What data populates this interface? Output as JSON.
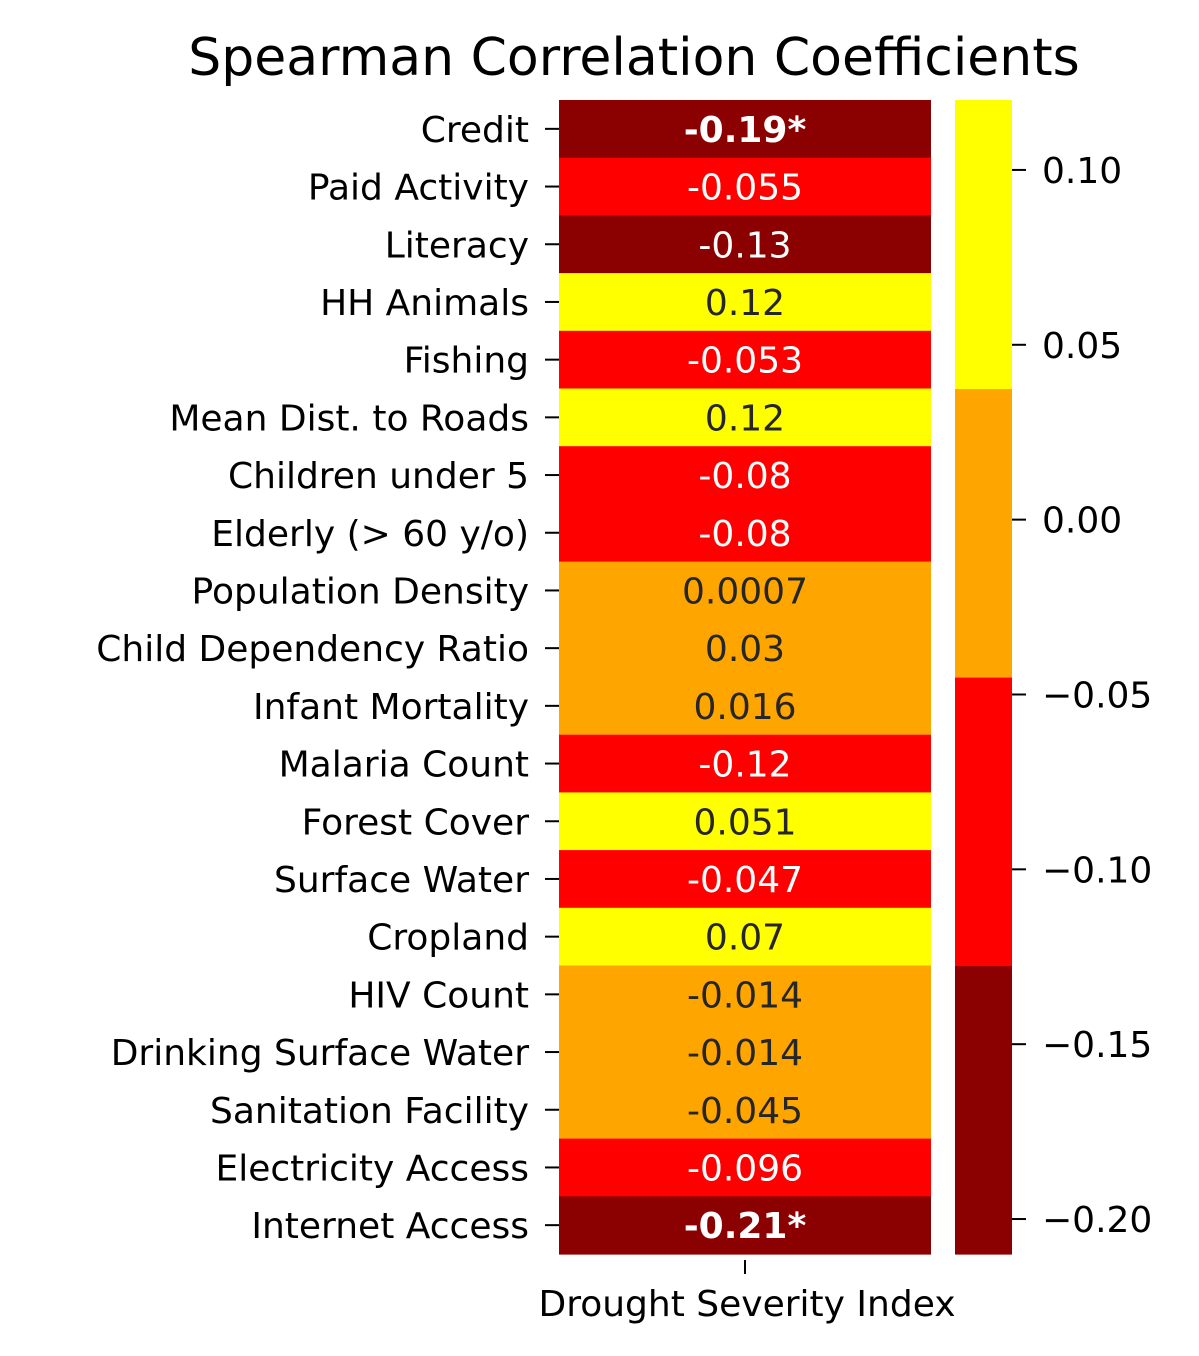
{
  "chart_data": {
    "type": "heatmap",
    "title": "Spearman Correlation Coefficients",
    "xlabel": "",
    "ylabel": "",
    "column_label": "Drought Severity Index",
    "rows": [
      {
        "label": "Credit",
        "value": -0.19,
        "text": "-0.19*",
        "significant": true
      },
      {
        "label": "Paid Activity",
        "value": -0.055,
        "text": "-0.055",
        "significant": false
      },
      {
        "label": "Literacy",
        "value": -0.13,
        "text": "-0.13",
        "significant": false
      },
      {
        "label": "HH Animals",
        "value": 0.12,
        "text": "0.12",
        "significant": false
      },
      {
        "label": "Fishing",
        "value": -0.053,
        "text": "-0.053",
        "significant": false
      },
      {
        "label": "Mean Dist. to Roads",
        "value": 0.12,
        "text": "0.12",
        "significant": false
      },
      {
        "label": "Children under 5",
        "value": -0.08,
        "text": "-0.08",
        "significant": false
      },
      {
        "label": "Elderly (> 60 y/o)",
        "value": -0.08,
        "text": "-0.08",
        "significant": false
      },
      {
        "label": "Population Density",
        "value": 0.0007,
        "text": "0.0007",
        "significant": false
      },
      {
        "label": "Child Dependency Ratio",
        "value": 0.03,
        "text": "0.03",
        "significant": false
      },
      {
        "label": "Infant Mortality",
        "value": 0.016,
        "text": "0.016",
        "significant": false
      },
      {
        "label": "Malaria Count",
        "value": -0.12,
        "text": "-0.12",
        "significant": false
      },
      {
        "label": "Forest Cover",
        "value": 0.051,
        "text": "0.051",
        "significant": false
      },
      {
        "label": "Surface Water",
        "value": -0.047,
        "text": "-0.047",
        "significant": false
      },
      {
        "label": "Cropland",
        "value": 0.07,
        "text": "0.07",
        "significant": false
      },
      {
        "label": "HIV Count",
        "value": -0.014,
        "text": "-0.014",
        "significant": false
      },
      {
        "label": "Drinking Surface Water",
        "value": -0.014,
        "text": "-0.014",
        "significant": false
      },
      {
        "label": "Sanitation Facility",
        "value": -0.045,
        "text": "-0.045",
        "significant": false
      },
      {
        "label": "Electricity Access",
        "value": -0.096,
        "text": "-0.096",
        "significant": false
      },
      {
        "label": "Internet Access",
        "value": -0.21,
        "text": "-0.21*",
        "significant": true
      }
    ],
    "colorbar": {
      "vmin": -0.21,
      "vmax": 0.12,
      "ticks": [
        0.1,
        0.05,
        0.0,
        -0.05,
        -0.1,
        -0.15,
        -0.2
      ],
      "tick_labels": [
        "0.10",
        "0.05",
        "0.00",
        "−0.05",
        "−0.10",
        "−0.15",
        "−0.20"
      ],
      "bins": [
        {
          "from": -0.21,
          "to": -0.1275,
          "color": "#8b0000",
          "text_color": "#ffffff"
        },
        {
          "from": -0.1275,
          "to": -0.045,
          "color": "#ff0000",
          "text_color": "#ffffff"
        },
        {
          "from": -0.045,
          "to": 0.0375,
          "color": "#ffa500",
          "text_color": "#262626"
        },
        {
          "from": 0.0375,
          "to": 0.12,
          "color": "#ffff00",
          "text_color": "#262626"
        }
      ]
    }
  }
}
